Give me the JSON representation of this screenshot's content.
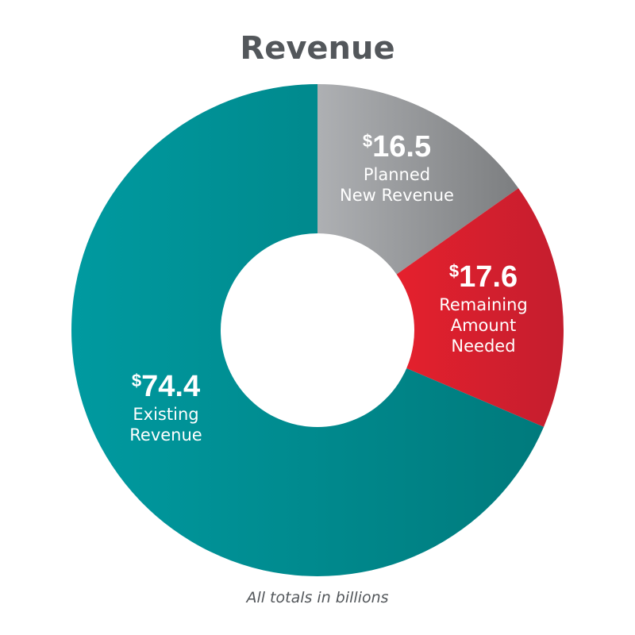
{
  "chart_data": {
    "type": "pie",
    "title": "Revenue",
    "currency_symbol": "$",
    "slices": [
      {
        "label_lines": [
          "Planned",
          "New Revenue"
        ],
        "value": 16.5,
        "display": "16.5",
        "color": "#8c8e90"
      },
      {
        "label_lines": [
          "Remaining",
          "Amount",
          "Needed"
        ],
        "value": 17.6,
        "display": "17.6",
        "color": "#d8202e"
      },
      {
        "label_lines": [
          "Existing",
          "Revenue"
        ],
        "value": 74.4,
        "display": "74.4",
        "color": "#008b8d"
      }
    ],
    "footnote": "All totals in billions"
  }
}
